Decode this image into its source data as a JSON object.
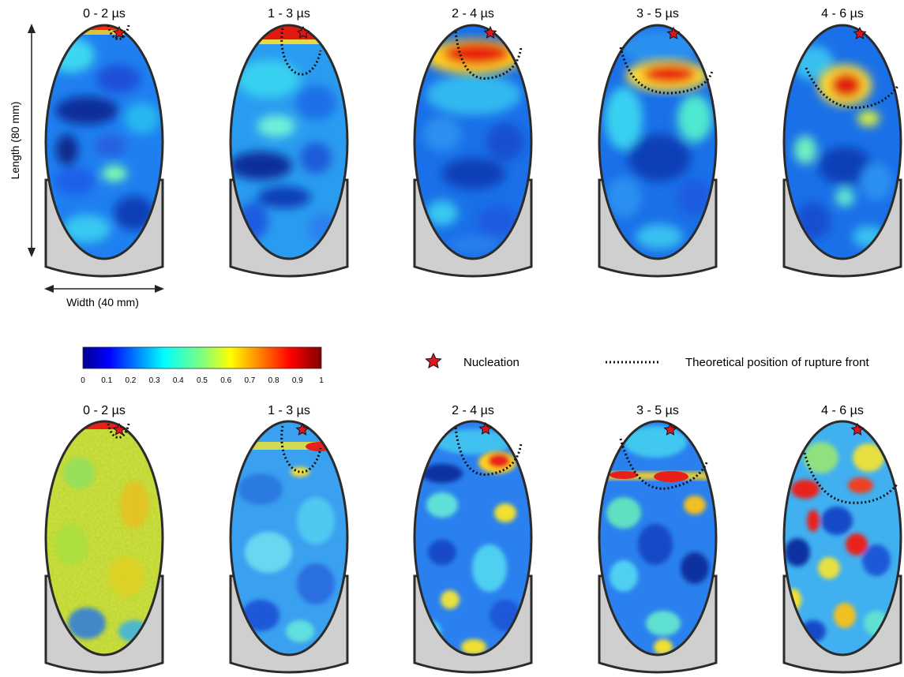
{
  "figure": {
    "top_row": {
      "panels": [
        {
          "title": "0 - 2 µs"
        },
        {
          "title": "1 - 3 µs"
        },
        {
          "title": "2 - 4 µs"
        },
        {
          "title": "3 - 5 µs"
        },
        {
          "title": "4 - 6 µs"
        }
      ]
    },
    "bottom_row": {
      "panels": [
        {
          "title": "0 - 2 µs"
        },
        {
          "title": "1 - 3 µs"
        },
        {
          "title": "2 - 4 µs"
        },
        {
          "title": "3 - 5 µs"
        },
        {
          "title": "4 - 6 µs"
        }
      ]
    },
    "axes": {
      "length_label": "Length (80 mm)",
      "width_label": "Width (40 mm)"
    },
    "colorbar": {
      "ticks": [
        "0",
        "0.1",
        "0.2",
        "0.3",
        "0.4",
        "0.5",
        "0.6",
        "0.7",
        "0.8",
        "0.9",
        "1"
      ],
      "colormap": "jet"
    },
    "legend": {
      "nucleation_label": "Nucleation",
      "rupture_front_label": "Theoretical position of rupture front"
    },
    "colors": {
      "outline": "#2b2b2b",
      "housing": "#cfcfcf",
      "star": "#e0141c",
      "jet_low": "#00008f",
      "jet_high": "#800000"
    }
  }
}
